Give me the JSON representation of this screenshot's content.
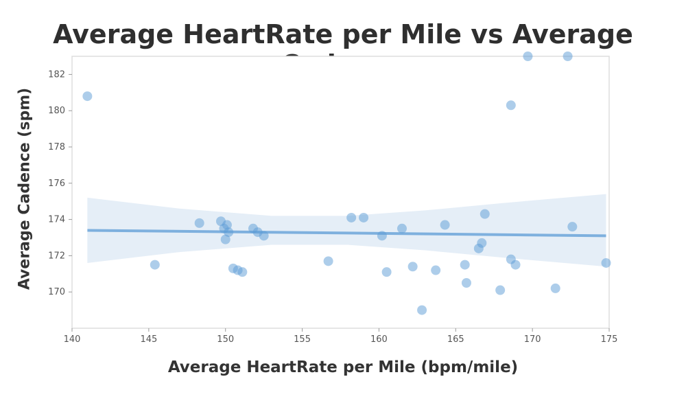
{
  "chart_data": {
    "type": "scatter",
    "title": "Average HeartRate per Mile vs Average Cadence",
    "xlabel": "Average HeartRate per Mile (bpm/mile)",
    "ylabel": "Average Cadence (spm)",
    "xlim": [
      140,
      175
    ],
    "ylim": [
      168,
      183
    ],
    "x_ticks": [
      140,
      145,
      150,
      155,
      160,
      165,
      170,
      175
    ],
    "y_ticks": [
      170,
      172,
      174,
      176,
      178,
      180,
      182
    ],
    "grid": false,
    "point_color": "#5b9bd5",
    "band_color": "#cfe0f1",
    "line_color": "#5b9bd5",
    "points": [
      [
        141.0,
        180.8
      ],
      [
        145.4,
        171.5
      ],
      [
        148.3,
        173.8
      ],
      [
        149.7,
        173.9
      ],
      [
        149.9,
        173.5
      ],
      [
        150.1,
        173.7
      ],
      [
        150.2,
        173.3
      ],
      [
        150.0,
        172.9
      ],
      [
        150.5,
        171.3
      ],
      [
        150.8,
        171.2
      ],
      [
        151.1,
        171.1
      ],
      [
        151.8,
        173.5
      ],
      [
        152.1,
        173.3
      ],
      [
        152.5,
        173.1
      ],
      [
        156.7,
        171.7
      ],
      [
        158.2,
        174.1
      ],
      [
        159.0,
        174.1
      ],
      [
        160.2,
        173.1
      ],
      [
        160.5,
        171.1
      ],
      [
        161.5,
        173.5
      ],
      [
        162.2,
        171.4
      ],
      [
        162.8,
        169.0
      ],
      [
        163.7,
        171.2
      ],
      [
        164.3,
        173.7
      ],
      [
        165.6,
        171.5
      ],
      [
        165.7,
        170.5
      ],
      [
        166.5,
        172.4
      ],
      [
        166.7,
        172.7
      ],
      [
        166.9,
        174.3
      ],
      [
        167.9,
        170.1
      ],
      [
        168.6,
        171.8
      ],
      [
        168.9,
        171.5
      ],
      [
        168.6,
        180.3
      ],
      [
        169.7,
        183.0
      ],
      [
        171.5,
        170.2
      ],
      [
        172.3,
        183.0
      ],
      [
        172.6,
        173.6
      ],
      [
        174.8,
        171.6
      ]
    ],
    "trend": {
      "x": [
        141,
        174.8
      ],
      "y_start": 173.4,
      "y_end": 173.1
    },
    "ci_band": {
      "x": [
        141,
        147,
        153,
        158,
        163,
        168,
        174.8
      ],
      "upper": [
        175.2,
        174.6,
        174.2,
        174.2,
        174.5,
        174.9,
        175.4
      ],
      "lower": [
        171.6,
        172.2,
        172.6,
        172.6,
        172.3,
        171.9,
        171.4
      ]
    }
  }
}
